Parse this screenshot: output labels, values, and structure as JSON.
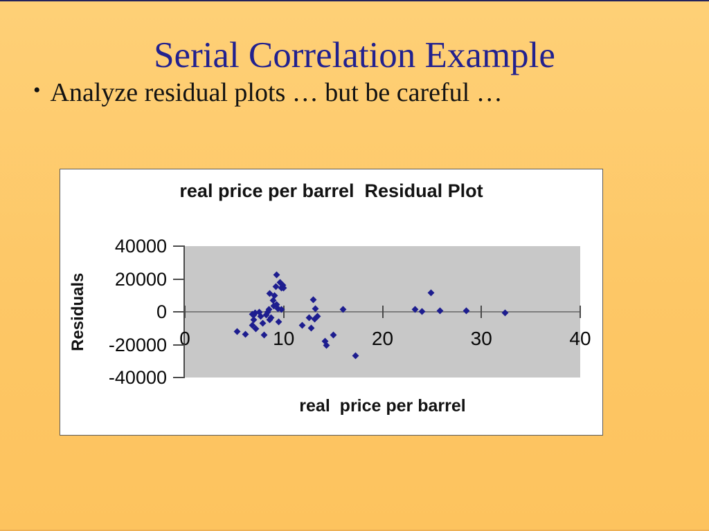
{
  "slide": {
    "title": "Serial Correlation Example",
    "bullet_marker": "•",
    "bullet_text": "Analyze residual plots … but be careful …"
  },
  "colors": {
    "background": "#fdc766",
    "title_text": "#22218f",
    "body_text": "#121212",
    "chart_background": "#ffffff",
    "plot_background": "#c8c8c8",
    "axis_line": "#4a4a4a",
    "zero_line": "#7e7e7e",
    "marker": "#1d1d8f"
  },
  "chart_data": {
    "type": "scatter",
    "title": "real price per barrel  Residual Plot",
    "xlabel": "real  price per barrel",
    "ylabel": "Residuals",
    "xlim": [
      0,
      40
    ],
    "ylim": [
      -40000,
      40000
    ],
    "x_ticks": [
      0,
      10,
      20,
      30,
      40
    ],
    "x_tick_labels": [
      "0",
      "10",
      "20",
      "30",
      "40"
    ],
    "y_ticks": [
      40000,
      20000,
      0,
      -20000,
      -40000
    ],
    "y_tick_labels": [
      "40000",
      "20000",
      "0",
      "-20000",
      "-40000"
    ],
    "grid": false,
    "legend_position": "none",
    "marker_shape": "diamond",
    "points": [
      [
        5.3,
        -12000
      ],
      [
        6.1,
        -13700
      ],
      [
        6.8,
        -1500
      ],
      [
        7.0,
        -5000
      ],
      [
        6.8,
        -8400
      ],
      [
        7.2,
        -10500
      ],
      [
        7.1,
        -500
      ],
      [
        7.0,
        -1700
      ],
      [
        7.5,
        -100
      ],
      [
        7.7,
        -2700
      ],
      [
        7.9,
        -7100
      ],
      [
        8.0,
        -13900
      ],
      [
        8.2,
        -2100
      ],
      [
        8.4,
        -300
      ],
      [
        8.5,
        1300
      ],
      [
        8.6,
        -5000
      ],
      [
        8.7,
        -3400
      ],
      [
        8.6,
        11000
      ],
      [
        8.9,
        6900
      ],
      [
        9.0,
        3400
      ],
      [
        9.1,
        10100
      ],
      [
        9.2,
        15400
      ],
      [
        9.3,
        22500
      ],
      [
        9.3,
        4300
      ],
      [
        9.4,
        2100
      ],
      [
        9.6,
        18000
      ],
      [
        9.8,
        14400
      ],
      [
        9.9,
        16300
      ],
      [
        9.5,
        -6300
      ],
      [
        9.8,
        1300
      ],
      [
        10.0,
        14600
      ],
      [
        11.9,
        -8400
      ],
      [
        12.6,
        -3400
      ],
      [
        12.8,
        -9700
      ],
      [
        13.0,
        7200
      ],
      [
        13.1,
        -4300
      ],
      [
        13.2,
        2100
      ],
      [
        13.4,
        -2900
      ],
      [
        14.2,
        -17800
      ],
      [
        14.3,
        -20300
      ],
      [
        15.0,
        -13900
      ],
      [
        16.0,
        1400
      ],
      [
        17.3,
        -26600
      ],
      [
        23.3,
        1300
      ],
      [
        24.0,
        100
      ],
      [
        24.9,
        11500
      ],
      [
        25.8,
        800
      ],
      [
        28.5,
        800
      ],
      [
        32.4,
        -700
      ]
    ]
  }
}
